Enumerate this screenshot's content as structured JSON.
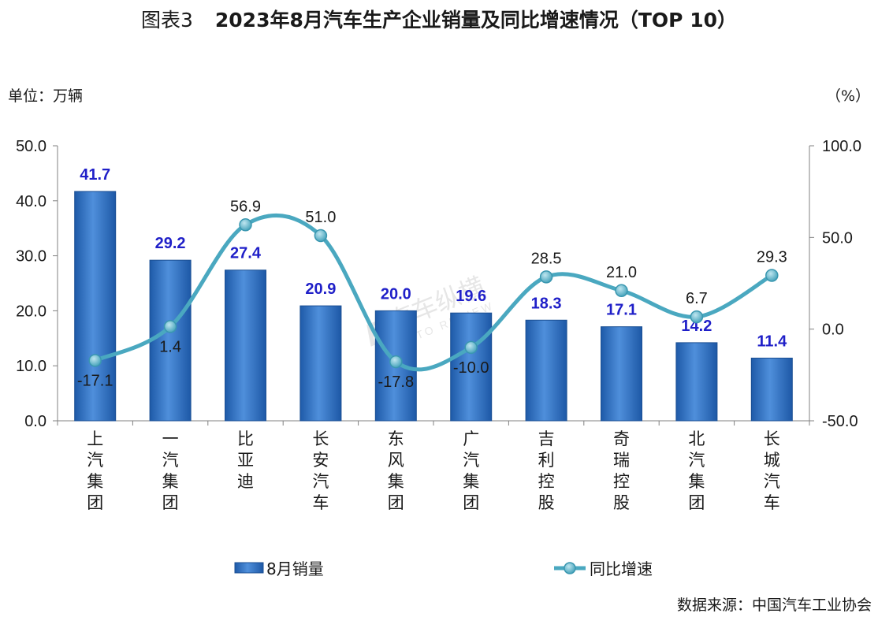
{
  "header": {
    "figure_label": "图表3",
    "title": "2023年8月汽车生产企业销量及同比增速情况（TOP 10）",
    "unit_left": "单位：万辆",
    "unit_right": "（%）"
  },
  "footer": {
    "source": "数据来源：中国汽车工业协会"
  },
  "chart_data": {
    "type": "bar",
    "categories": [
      "上汽集团",
      "一汽集团",
      "比亚迪",
      "长安汽车",
      "东风集团",
      "广汽集团",
      "吉利控股",
      "奇瑞控股",
      "北汽集团",
      "长城汽车"
    ],
    "series": [
      {
        "name": "8月销量",
        "type": "bar",
        "axis": "left",
        "values": [
          41.7,
          29.2,
          27.4,
          20.9,
          20.0,
          19.6,
          18.3,
          17.1,
          14.2,
          11.4
        ],
        "color": "#2e6fc2",
        "label_color": "#1f1fc8"
      },
      {
        "name": "同比增速",
        "type": "line",
        "axis": "right",
        "values": [
          -17.1,
          1.4,
          56.9,
          51.0,
          -17.8,
          -10.0,
          28.5,
          21.0,
          6.7,
          29.3
        ],
        "color": "#4aa8c0",
        "smooth": true
      }
    ],
    "left_axis": {
      "min": 0,
      "max": 50,
      "ticks": [
        "0.0",
        "10.0",
        "20.0",
        "30.0",
        "40.0",
        "50.0"
      ]
    },
    "right_axis": {
      "min": -50,
      "max": 100,
      "ticks": [
        "-50.0",
        "0.0",
        "50.0",
        "100.0"
      ]
    },
    "legend_position": "bottom",
    "grid": false
  }
}
